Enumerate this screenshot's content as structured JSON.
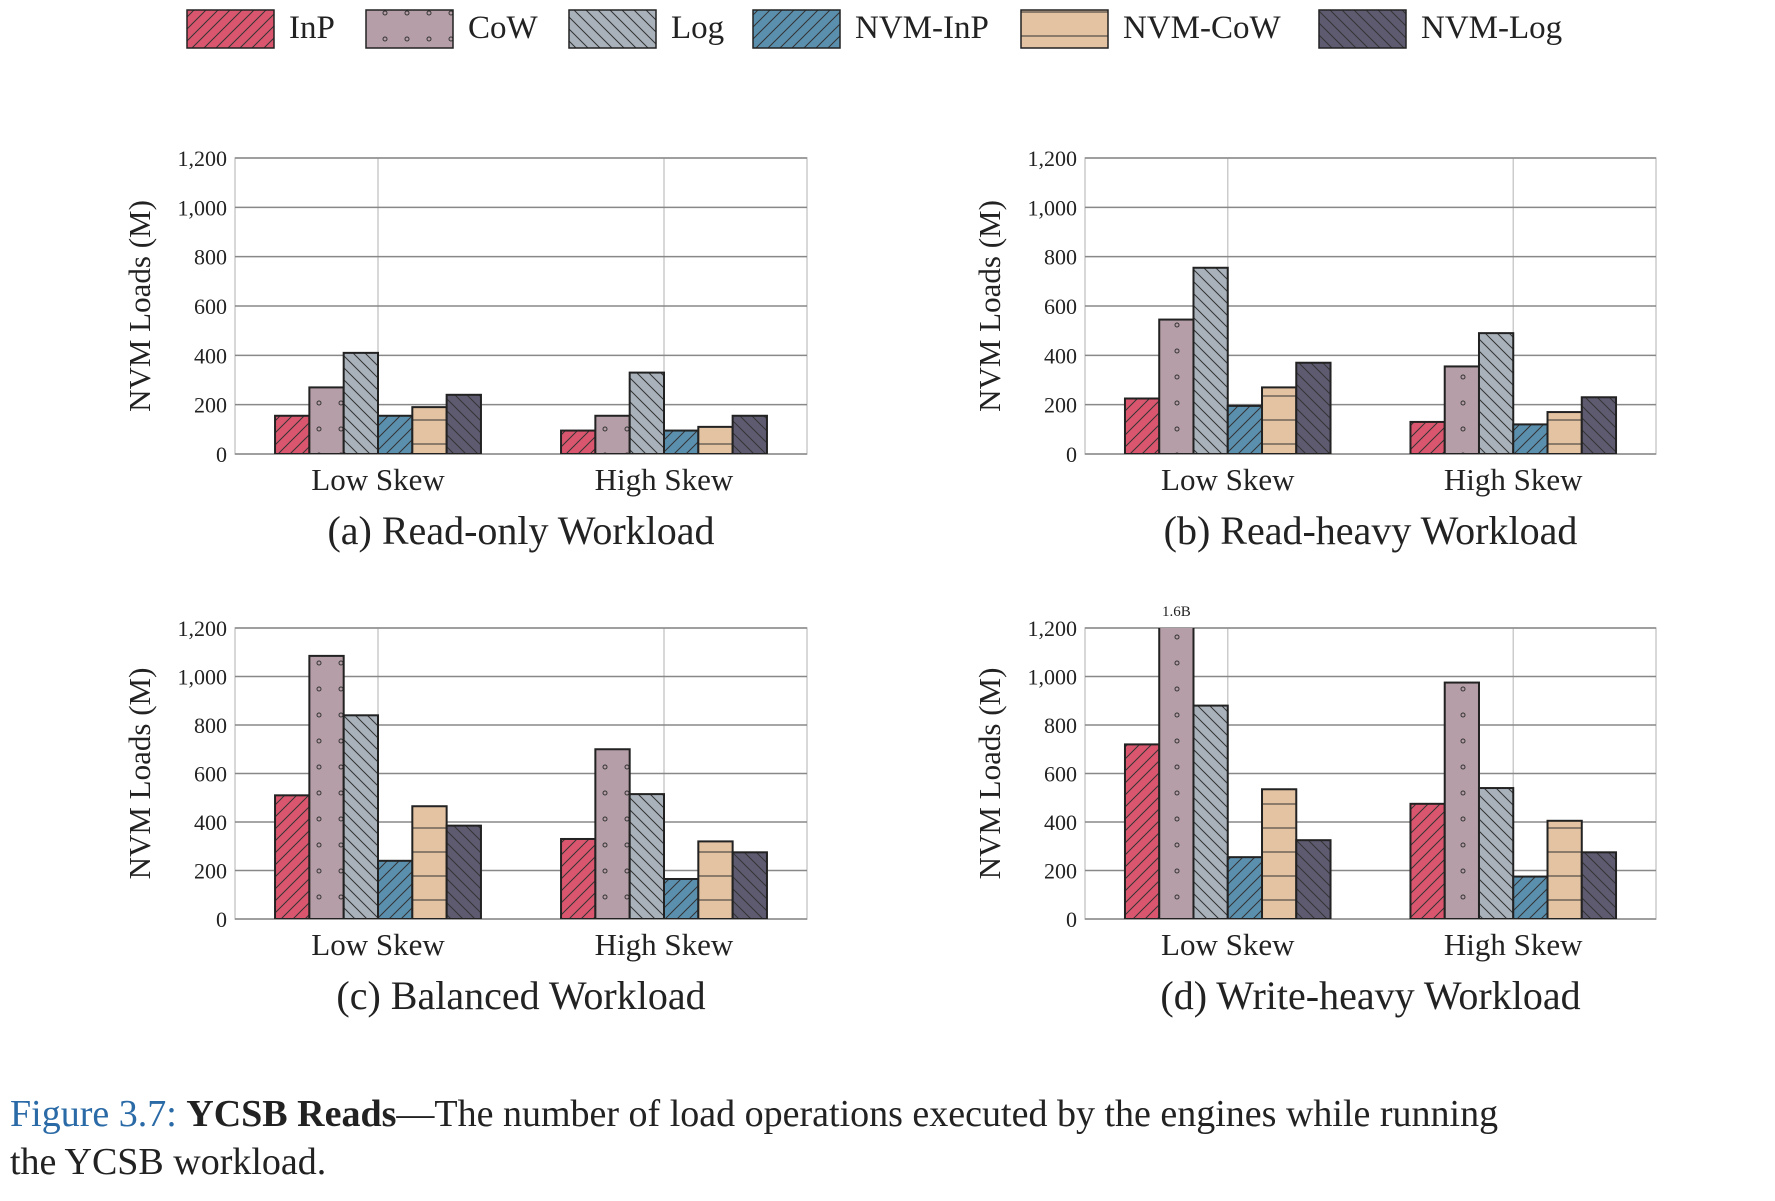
{
  "legend": [
    {
      "name": "InP",
      "color": "#d9566e",
      "pattern": "forward"
    },
    {
      "name": "CoW",
      "color": "#b59ea7",
      "pattern": "dots"
    },
    {
      "name": "Log",
      "color": "#a9b2bb",
      "pattern": "back"
    },
    {
      "name": "NVM-InP",
      "color": "#5b8fae",
      "pattern": "forward"
    },
    {
      "name": "NVM-CoW",
      "color": "#e3c3a2",
      "pattern": "horizontal"
    },
    {
      "name": "NVM-Log",
      "color": "#5e5b71",
      "pattern": "back"
    }
  ],
  "chart_data": [
    {
      "type": "bar",
      "title": "(a) Read-only Workload",
      "y_label": "NVM Loads (M)",
      "categories": [
        "Low Skew",
        "High Skew"
      ],
      "series": [
        {
          "values": [
            155,
            95
          ]
        },
        {
          "values": [
            270,
            155
          ]
        },
        {
          "values": [
            410,
            330
          ]
        },
        {
          "values": [
            155,
            95
          ]
        },
        {
          "values": [
            190,
            110
          ]
        },
        {
          "values": [
            240,
            155
          ]
        }
      ],
      "ylim": [
        0,
        1200
      ],
      "yticks": [
        0,
        200,
        400,
        600,
        800,
        {
          "value": 1000,
          "label": "1,000"
        },
        {
          "value": 1200,
          "label": "1,200"
        }
      ],
      "grid": true
    },
    {
      "type": "bar",
      "title": "(b) Read-heavy Workload",
      "y_label": "NVM Loads (M)",
      "categories": [
        "Low Skew",
        "High Skew"
      ],
      "series": [
        {
          "values": [
            225,
            130
          ]
        },
        {
          "values": [
            545,
            355
          ]
        },
        {
          "values": [
            755,
            490
          ]
        },
        {
          "values": [
            195,
            120
          ]
        },
        {
          "values": [
            270,
            170
          ]
        },
        {
          "values": [
            370,
            230
          ]
        }
      ],
      "ylim": [
        0,
        1200
      ],
      "yticks": [
        0,
        200,
        400,
        600,
        800,
        {
          "value": 1000,
          "label": "1,000"
        },
        {
          "value": 1200,
          "label": "1,200"
        }
      ],
      "grid": true
    },
    {
      "type": "bar",
      "title": "(c) Balanced Workload",
      "y_label": "NVM Loads (M)",
      "categories": [
        "Low Skew",
        "High Skew"
      ],
      "series": [
        {
          "values": [
            510,
            330
          ]
        },
        {
          "values": [
            1085,
            700
          ]
        },
        {
          "values": [
            840,
            515
          ]
        },
        {
          "values": [
            240,
            165
          ]
        },
        {
          "values": [
            465,
            320
          ]
        },
        {
          "values": [
            385,
            275
          ]
        }
      ],
      "ylim": [
        0,
        1200
      ],
      "yticks": [
        0,
        200,
        400,
        600,
        800,
        {
          "value": 1000,
          "label": "1,000"
        },
        {
          "value": 1200,
          "label": "1,200"
        }
      ],
      "grid": true
    },
    {
      "type": "bar",
      "title": "(d) Write-heavy Workload",
      "y_label": "NVM Loads (M)",
      "categories": [
        "Low Skew",
        "High Skew"
      ],
      "series": [
        {
          "values": [
            720,
            475
          ]
        },
        {
          "values": [
            1600,
            975
          ],
          "value_labels": [
            "1.6B",
            null
          ]
        },
        {
          "values": [
            880,
            540
          ]
        },
        {
          "values": [
            255,
            175
          ]
        },
        {
          "values": [
            535,
            405
          ]
        },
        {
          "values": [
            325,
            275
          ]
        }
      ],
      "ylim": [
        0,
        1200
      ],
      "yticks": [
        0,
        200,
        400,
        600,
        800,
        {
          "value": 1000,
          "label": "1,000"
        },
        {
          "value": 1200,
          "label": "1,200"
        }
      ],
      "grid": true
    }
  ],
  "caption": {
    "label": "Figure 3.7:",
    "title": "YCSB Reads",
    "lines": [
      "—The number of load operations executed by the engines while running",
      "the YCSB workload."
    ]
  }
}
